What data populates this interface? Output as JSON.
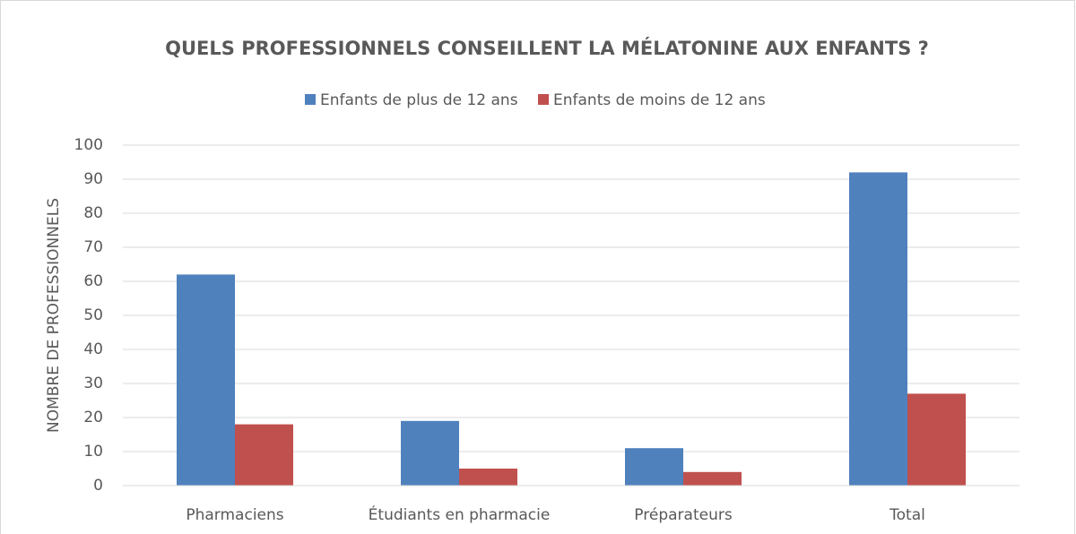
{
  "chart_data": {
    "type": "bar",
    "title": "QUELS PROFESSIONNELS CONSEILLENT LA MÉLATONINE AUX ENFANTS ?",
    "y_label": "NOMBRE DE PROFESSIONNELS",
    "categories": [
      "Pharmaciens",
      "Étudiants en pharmacie",
      "Préparateurs",
      "Total"
    ],
    "series": [
      {
        "name": "Enfants de plus de 12 ans",
        "color": "#4f81bd",
        "values": [
          62,
          19,
          11,
          92
        ]
      },
      {
        "name": "Enfants de moins de 12 ans",
        "color": "#c0504d",
        "values": [
          18,
          5,
          4,
          27
        ]
      }
    ],
    "ylim": [
      0,
      100
    ],
    "yticks": [
      0,
      10,
      20,
      30,
      40,
      50,
      60,
      70,
      80,
      90,
      100
    ],
    "grid": true,
    "legend": "top"
  }
}
